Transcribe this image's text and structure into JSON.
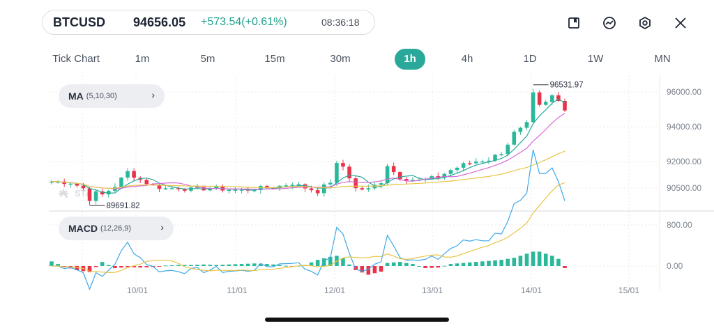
{
  "header": {
    "symbol": "BTCUSD",
    "price": "94656.05",
    "change": "+573.54(+0.61%)",
    "time": "08:36:18"
  },
  "toolbar_icons": [
    "bookmark-icon",
    "chart-trend-icon",
    "settings-hex-icon",
    "close-icon"
  ],
  "timeframes": [
    {
      "label": "Tick Chart",
      "active": false
    },
    {
      "label": "1m",
      "active": false
    },
    {
      "label": "5m",
      "active": false
    },
    {
      "label": "15m",
      "active": false
    },
    {
      "label": "30m",
      "active": false
    },
    {
      "label": "1h",
      "active": true
    },
    {
      "label": "4h",
      "active": false
    },
    {
      "label": "1D",
      "active": false
    },
    {
      "label": "1W",
      "active": false
    },
    {
      "label": "MN",
      "active": false
    }
  ],
  "ma_indicator": {
    "name": "MA",
    "params": "(5,10,30)"
  },
  "macd_indicator": {
    "name": "MACD",
    "params": "(12,26,9)"
  },
  "watermark_text": "STA",
  "colors": {
    "up": "#2bb89a",
    "down": "#e8334a",
    "ma5": "#2aa89a",
    "ma10": "#d867d6",
    "ma30": "#e8c545",
    "macd_line": "#3ea7e8",
    "signal_line": "#e8c545",
    "accent": "#2aa89a"
  },
  "chart_data": {
    "type": "candlestick",
    "price_axis_ticks": [
      "96000.00",
      "94000.00",
      "92000.00",
      "90500.00"
    ],
    "macd_axis_ticks": [
      "800.00",
      "0.00"
    ],
    "x_ticks": [
      "10/01",
      "11/01",
      "12/01",
      "13/01",
      "14/01",
      "15/01"
    ],
    "annotations": {
      "high": "96531.97",
      "low": "89691.82"
    },
    "price_range": [
      89500,
      96600
    ],
    "price_series": [
      [
        0,
        91050
      ],
      [
        3,
        91000
      ],
      [
        6,
        90500
      ],
      [
        8,
        90300
      ],
      [
        10,
        90800
      ],
      [
        12,
        91600
      ],
      [
        14,
        91150
      ],
      [
        16,
        90800
      ],
      [
        18,
        90650
      ],
      [
        20,
        90700
      ],
      [
        22,
        90600
      ],
      [
        24,
        90650
      ],
      [
        26,
        90650
      ],
      [
        28,
        90600
      ],
      [
        30,
        90550
      ],
      [
        32,
        90650
      ],
      [
        34,
        90700
      ],
      [
        36,
        90800
      ],
      [
        38,
        90950
      ],
      [
        40,
        90700
      ],
      [
        42,
        90500
      ],
      [
        44,
        91050
      ],
      [
        45,
        92000
      ],
      [
        46,
        91900
      ],
      [
        47,
        91300
      ],
      [
        48,
        90650
      ],
      [
        50,
        90600
      ],
      [
        52,
        91050
      ],
      [
        53,
        92000
      ],
      [
        54,
        91600
      ],
      [
        55,
        91300
      ],
      [
        58,
        91100
      ],
      [
        61,
        91300
      ],
      [
        63,
        91700
      ],
      [
        65,
        92000
      ],
      [
        67,
        92200
      ],
      [
        69,
        92300
      ],
      [
        71,
        92700
      ],
      [
        72,
        93200
      ],
      [
        73,
        93800
      ],
      [
        74,
        94000
      ],
      [
        75,
        94300
      ],
      [
        76,
        95800
      ],
      [
        77,
        95300
      ],
      [
        78,
        95500
      ],
      [
        79,
        95900
      ],
      [
        80,
        95600
      ],
      [
        81,
        95200
      ]
    ],
    "ma_lines": [
      "MA5",
      "MA10",
      "MA30"
    ],
    "macd_histogram": [
      [
        0,
        90
      ],
      [
        2,
        -10
      ],
      [
        4,
        -80
      ],
      [
        6,
        -120
      ],
      [
        8,
        80
      ],
      [
        10,
        -40
      ],
      [
        12,
        -20
      ],
      [
        14,
        -30
      ],
      [
        16,
        -20
      ],
      [
        18,
        10
      ],
      [
        20,
        20
      ],
      [
        22,
        20
      ],
      [
        24,
        30
      ],
      [
        26,
        20
      ],
      [
        28,
        30
      ],
      [
        30,
        40
      ],
      [
        32,
        50
      ],
      [
        34,
        40
      ],
      [
        36,
        20
      ],
      [
        38,
        -10
      ],
      [
        40,
        20
      ],
      [
        42,
        120
      ],
      [
        44,
        180
      ],
      [
        45,
        200
      ],
      [
        46,
        150
      ],
      [
        47,
        30
      ],
      [
        48,
        -80
      ],
      [
        50,
        -170
      ],
      [
        52,
        -110
      ],
      [
        53,
        60
      ],
      [
        55,
        80
      ],
      [
        57,
        40
      ],
      [
        59,
        -40
      ],
      [
        61,
        -30
      ],
      [
        63,
        40
      ],
      [
        65,
        60
      ],
      [
        67,
        80
      ],
      [
        69,
        100
      ],
      [
        71,
        120
      ],
      [
        73,
        160
      ],
      [
        75,
        240
      ],
      [
        76,
        280
      ],
      [
        77,
        280
      ],
      [
        78,
        240
      ],
      [
        79,
        200
      ],
      [
        80,
        140
      ],
      [
        81,
        -40
      ]
    ]
  }
}
